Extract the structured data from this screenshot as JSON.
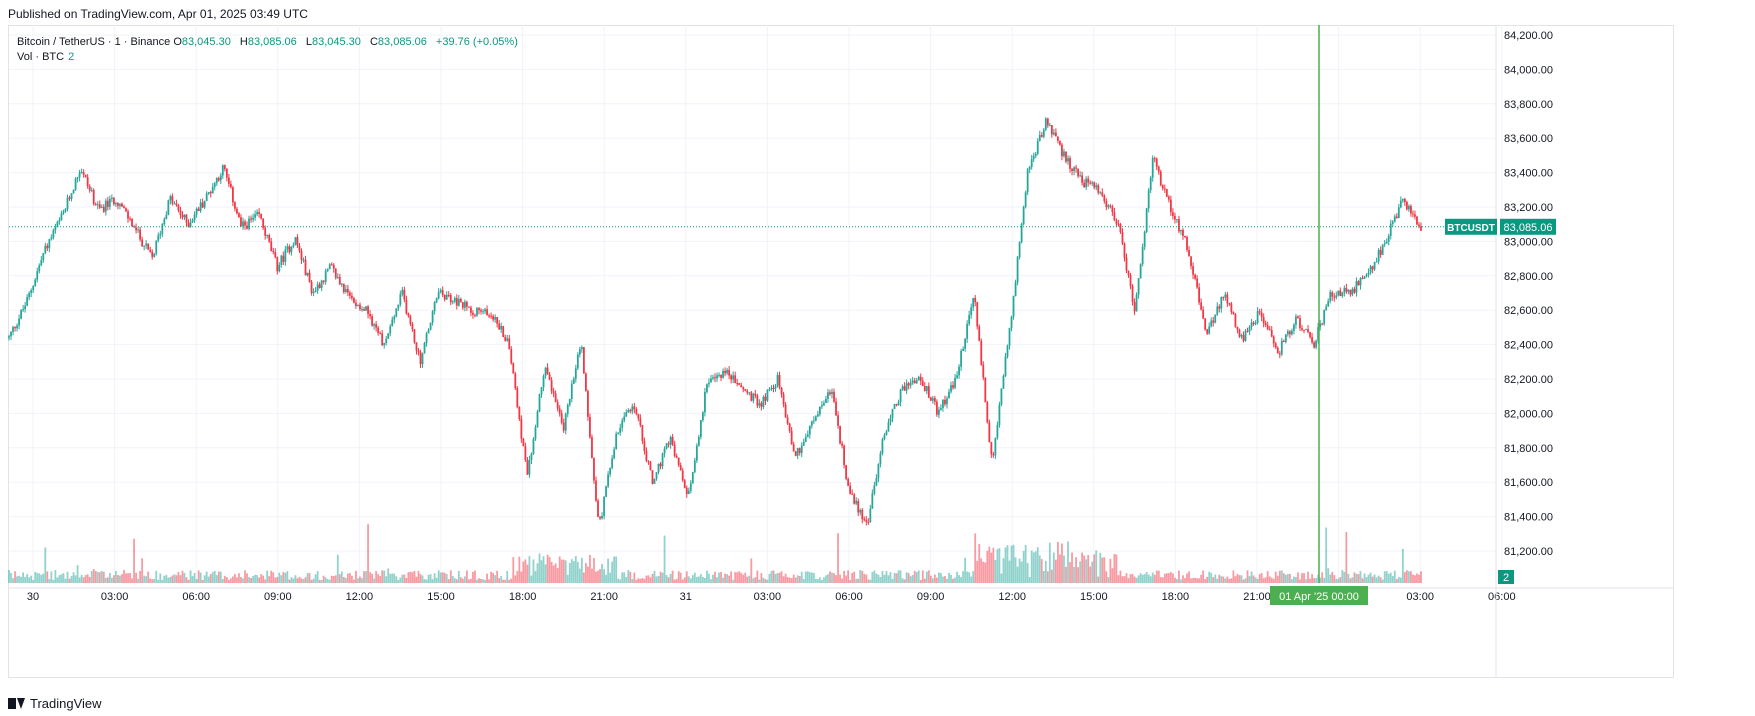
{
  "published": "Published on TradingView.com, Apr 01, 2025 03:49 UTC",
  "legend": {
    "symbol": "Bitcoin / TetherUS · 1 · Binance",
    "o_label": "O",
    "o": "83,045.30",
    "h_label": "H",
    "h": "83,085.06",
    "l_label": "L",
    "l": "83,045.30",
    "c_label": "C",
    "c": "83,085.06",
    "change": "+39.76 (+0.05%)",
    "vol_label": "Vol · BTC",
    "vol_value": "2"
  },
  "price_badge": {
    "label": "BTCUSDT",
    "value": "83,085.06"
  },
  "volume_badge": "2",
  "crosshair_label": "01 Apr '25   00:00",
  "footer_brand": "TradingView",
  "colors": {
    "up": "#26a69a",
    "down": "#f23645",
    "accent": "#089981",
    "crosshair": "#4caf50",
    "grid": "#f0f3fa"
  },
  "chart_data": {
    "type": "candlestick",
    "symbol": "BTCUSDT",
    "interval": "1",
    "y_ticks": [
      "84,200.00",
      "84,000.00",
      "83,800.00",
      "83,600.00",
      "83,400.00",
      "83,200.00",
      "83,000.00",
      "82,800.00",
      "82,600.00",
      "82,400.00",
      "82,200.00",
      "82,000.00",
      "81,800.00",
      "81,600.00",
      "81,400.00",
      "81,200.00"
    ],
    "ylim": [
      81100,
      84270
    ],
    "x_ticks": [
      "30",
      "03:00",
      "06:00",
      "09:00",
      "12:00",
      "15:00",
      "18:00",
      "21:00",
      "31",
      "03:00",
      "06:00",
      "09:00",
      "12:00",
      "15:00",
      "18:00",
      "21:00",
      "01 Apr '25",
      "03:00",
      "06:00"
    ],
    "crosshair_x_index": 16,
    "last_price": 83085.06,
    "price_path": [
      [
        0,
        82440
      ],
      [
        0.5,
        82650
      ],
      [
        1,
        82950
      ],
      [
        1.5,
        83150
      ],
      [
        2,
        83430
      ],
      [
        2.5,
        83180
      ],
      [
        3,
        83250
      ],
      [
        3.5,
        83080
      ],
      [
        4,
        82900
      ],
      [
        4.5,
        83250
      ],
      [
        5,
        83100
      ],
      [
        5.5,
        83250
      ],
      [
        6,
        83430
      ],
      [
        6.5,
        83080
      ],
      [
        7,
        83150
      ],
      [
        7.5,
        82850
      ],
      [
        8,
        83020
      ],
      [
        8.5,
        82700
      ],
      [
        9,
        82850
      ],
      [
        9.5,
        82680
      ],
      [
        10,
        82600
      ],
      [
        10.5,
        82400
      ],
      [
        11,
        82700
      ],
      [
        11.5,
        82300
      ],
      [
        12,
        82700
      ],
      [
        12.5,
        82650
      ],
      [
        13,
        82600
      ],
      [
        13.5,
        82580
      ],
      [
        14,
        82400
      ],
      [
        14.5,
        81620
      ],
      [
        15,
        82300
      ],
      [
        15.5,
        81900
      ],
      [
        16,
        82420
      ],
      [
        16.5,
        81330
      ],
      [
        17,
        81900
      ],
      [
        17.5,
        82050
      ],
      [
        18,
        81600
      ],
      [
        18.5,
        81850
      ],
      [
        19,
        81500
      ],
      [
        19.5,
        82150
      ],
      [
        20,
        82250
      ],
      [
        20.5,
        82150
      ],
      [
        21,
        82050
      ],
      [
        21.5,
        82200
      ],
      [
        22,
        81750
      ],
      [
        22.5,
        81950
      ],
      [
        23,
        82150
      ],
      [
        23.5,
        81550
      ],
      [
        24,
        81350
      ],
      [
        24.5,
        81900
      ],
      [
        25,
        82150
      ],
      [
        25.5,
        82200
      ],
      [
        26,
        82000
      ],
      [
        26.5,
        82200
      ],
      [
        27,
        82700
      ],
      [
        27.5,
        81700
      ],
      [
        28,
        82500
      ],
      [
        28.5,
        83400
      ],
      [
        29,
        83700
      ],
      [
        29.5,
        83500
      ],
      [
        30,
        83350
      ],
      [
        30.5,
        83300
      ],
      [
        31,
        83120
      ],
      [
        31.5,
        82600
      ],
      [
        32,
        83480
      ],
      [
        32.5,
        83200
      ],
      [
        33,
        82950
      ],
      [
        33.5,
        82450
      ],
      [
        34,
        82700
      ],
      [
        34.5,
        82420
      ],
      [
        35,
        82600
      ],
      [
        35.5,
        82350
      ],
      [
        36,
        82550
      ],
      [
        36.5,
        82400
      ],
      [
        37,
        82700
      ],
      [
        37.5,
        82700
      ],
      [
        38,
        82800
      ],
      [
        38.5,
        83000
      ],
      [
        39,
        83250
      ],
      [
        39.5,
        83080
      ]
    ]
  }
}
